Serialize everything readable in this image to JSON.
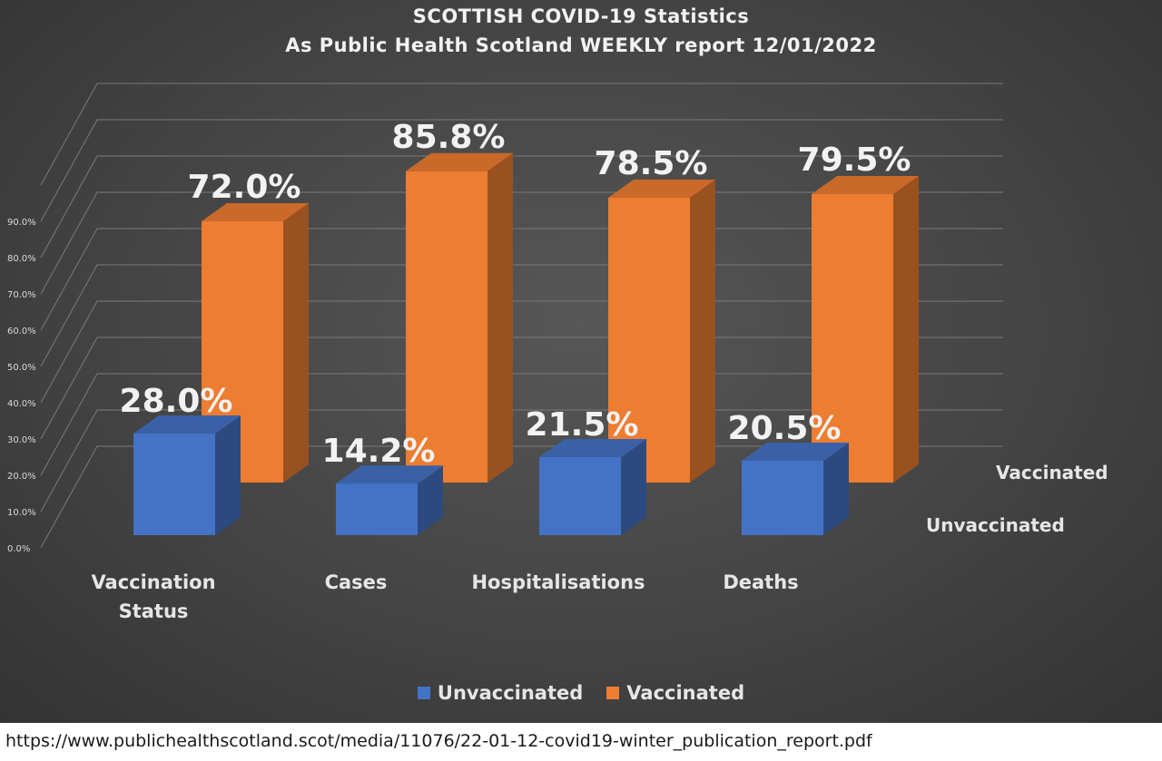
{
  "chart_data": {
    "type": "bar",
    "title": "SCOTTISH COVID-19 Statistics",
    "subtitle": "As Public Health Scotland WEEKLY report 12/01/2022",
    "categories": [
      "Vaccination Status",
      "Cases",
      "Hospitalisations",
      "Deaths"
    ],
    "category_lines": [
      [
        "Vaccination",
        "Status"
      ],
      [
        "Cases"
      ],
      [
        "Hospitalisations"
      ],
      [
        "Deaths"
      ]
    ],
    "series": [
      {
        "name": "Unvaccinated",
        "values": [
          28.0,
          14.2,
          21.5,
          20.5
        ],
        "labels": [
          "28.0%",
          "14.2%",
          "21.5%",
          "20.5%"
        ],
        "color": "#4472C4"
      },
      {
        "name": "Vaccinated",
        "values": [
          72.0,
          85.8,
          78.5,
          79.5
        ],
        "labels": [
          "72.0%",
          "85.8%",
          "78.5%",
          "79.5%"
        ],
        "color": "#ED7D31"
      }
    ],
    "y_ticks": [
      "0.0%",
      "10.0%",
      "20.0%",
      "30.0%",
      "40.0%",
      "50.0%",
      "60.0%",
      "70.0%",
      "80.0%",
      "90.0%"
    ],
    "ylim": [
      0,
      100
    ],
    "grid": true,
    "legend_position": "bottom",
    "three_d": true
  },
  "series_axis_labels": [
    "Vaccinated",
    "Unvaccinated"
  ],
  "legend": [
    {
      "label": "Unvaccinated",
      "color": "#4472C4"
    },
    {
      "label": "Vaccinated",
      "color": "#ED7D31"
    }
  ],
  "source_url": "https://www.publichealthscotland.scot/media/11076/22-01-12-covid19-winter_publication_report.pdf"
}
